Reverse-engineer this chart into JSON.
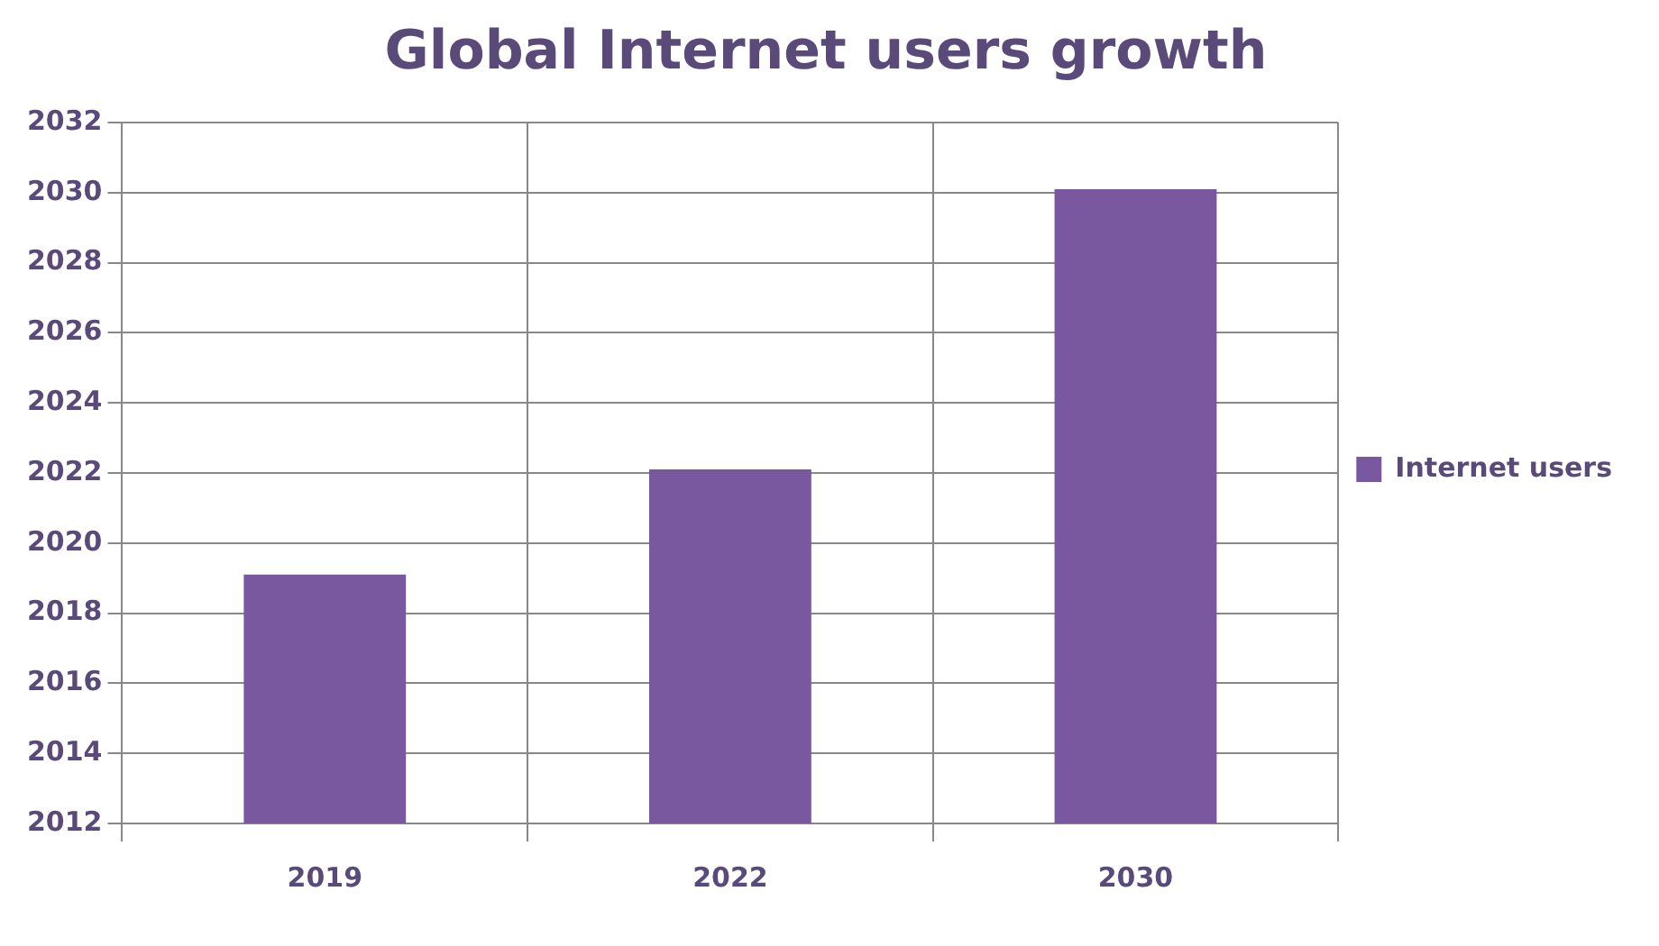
{
  "chart_data": {
    "type": "bar",
    "title": "Global Internet users growth",
    "categories": [
      "2019",
      "2022",
      "2030"
    ],
    "series": [
      {
        "name": "Internet users",
        "color": "#7a58a0",
        "values": [
          2019.1,
          2022.1,
          2030.1
        ]
      }
    ],
    "ylim": [
      2012,
      2032
    ],
    "yticks": [
      2012,
      2014,
      2016,
      2018,
      2020,
      2022,
      2024,
      2026,
      2028,
      2030,
      2032
    ],
    "grid": true,
    "legend": "right"
  }
}
